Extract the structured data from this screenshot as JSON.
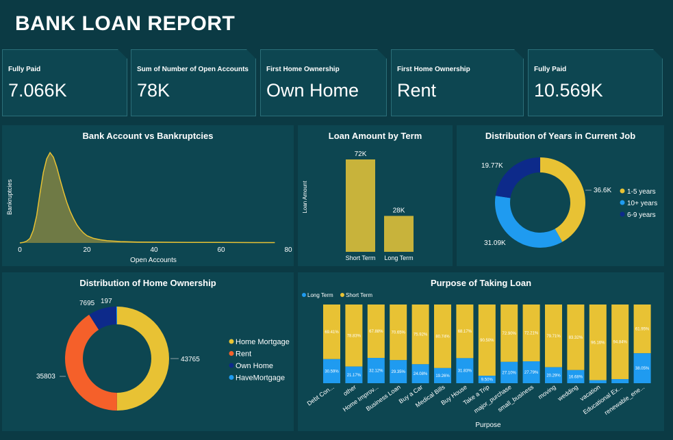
{
  "title": "BANK LOAN REPORT",
  "kpis": [
    {
      "label": "Fully Paid",
      "value": "7.066K"
    },
    {
      "label": "Sum of Number of Open Accounts",
      "value": "78K"
    },
    {
      "label": "First Home Ownership",
      "value": "Own Home"
    },
    {
      "label": "First Home Ownership",
      "value": "Rent"
    },
    {
      "label": "Fully Paid",
      "value": "10.569K"
    }
  ],
  "colors": {
    "yellow": "#e8c234",
    "blue": "#1f9bf0",
    "navy": "#0d2a8a",
    "orange": "#f5602a",
    "olive": "#c8b33b",
    "area": "#6f7a45"
  },
  "chart_data": [
    {
      "id": "bankruptcies",
      "type": "area",
      "title": "Bank Account vs Bankruptcies",
      "xlabel": "Open Accounts",
      "ylabel": "Bankruptcies",
      "xlim": [
        0,
        80
      ],
      "xticks": [
        "0",
        "20",
        "40",
        "60",
        "80"
      ],
      "x": [
        0,
        1,
        2,
        3,
        4,
        5,
        6,
        7,
        8,
        9,
        10,
        11,
        12,
        13,
        14,
        15,
        16,
        17,
        18,
        19,
        20,
        22,
        24,
        26,
        28,
        30,
        35,
        40,
        50,
        60,
        70,
        76
      ],
      "y": [
        0,
        0.5,
        2,
        5,
        14,
        30,
        55,
        78,
        93,
        100,
        95,
        84,
        70,
        57,
        45,
        35,
        27,
        20,
        15,
        11,
        8,
        5,
        3.5,
        2.5,
        2,
        1.5,
        1,
        0.8,
        0.6,
        0.5,
        0.4,
        0.4
      ]
    },
    {
      "id": "loan_term",
      "type": "bar",
      "title": "Loan Amount by Term",
      "ylabel": "Loan Amount",
      "categories": [
        "Short Term",
        "Long Term"
      ],
      "values": [
        72,
        28
      ],
      "labels": [
        "72K",
        "28K"
      ],
      "ylim": [
        0,
        80
      ]
    },
    {
      "id": "years_job",
      "type": "pie",
      "title": "Distribution of Years in Current Job",
      "series": [
        {
          "name": "1-5 years",
          "value": 36.6,
          "label": "36.6K"
        },
        {
          "name": "10+ years",
          "value": 31.09,
          "label": "31.09K"
        },
        {
          "name": "6-9 years",
          "value": 19.77,
          "label": "19.77K"
        }
      ]
    },
    {
      "id": "home_ownership",
      "type": "pie",
      "title": "Distribution of Home Ownership",
      "series": [
        {
          "name": "Home Mortgage",
          "value": 43765,
          "label": "43765"
        },
        {
          "name": "Rent",
          "value": 35803,
          "label": "35803"
        },
        {
          "name": "Own Home",
          "value": 7695,
          "label": "7695"
        },
        {
          "name": "HaveMortgage",
          "value": 197,
          "label": "197"
        }
      ]
    },
    {
      "id": "purpose",
      "type": "bar",
      "stacked": true,
      "title": "Purpose of Taking Loan",
      "xlabel": "Purpose",
      "legend": [
        "Long Term",
        "Short Term"
      ],
      "categories": [
        "Debt Con...",
        "other",
        "Home Improv...",
        "Business Loan",
        "Buy a Car",
        "Medical Bills",
        "Buy House",
        "Take a Trip",
        "major_purchase",
        "small_business",
        "moving",
        "wedding",
        "vacation",
        "Educational Ex...",
        "renewable_ene..."
      ],
      "series": [
        {
          "name": "Long Term",
          "values": [
            30.59,
            21.17,
            32.12,
            29.35,
            24.08,
            19.26,
            31.83,
            9.5,
            27.1,
            27.79,
            20.29,
            16.68,
            3.84,
            5.16,
            38.05
          ],
          "labels": [
            "30.59%",
            "21.17%",
            "32.12%",
            "29.35%",
            "24.08%",
            "19.26%",
            "31.83%",
            "9.50%",
            "27.10%",
            "27.79%",
            "20.29%",
            "16.68%",
            "",
            "",
            "38.05%"
          ]
        },
        {
          "name": "Short Term",
          "values": [
            69.41,
            78.83,
            67.88,
            70.65,
            75.92,
            80.74,
            68.17,
            90.5,
            72.9,
            72.21,
            79.71,
            83.32,
            96.16,
            94.84,
            61.95
          ],
          "labels": [
            "69.41%",
            "78.83%",
            "67.88%",
            "70.65%",
            "75.92%",
            "80.74%",
            "68.17%",
            "90.50%",
            "72.90%",
            "72.21%",
            "79.71%",
            "83.32%",
            "96.16%",
            "94.84%",
            "61.95%"
          ]
        }
      ]
    }
  ]
}
